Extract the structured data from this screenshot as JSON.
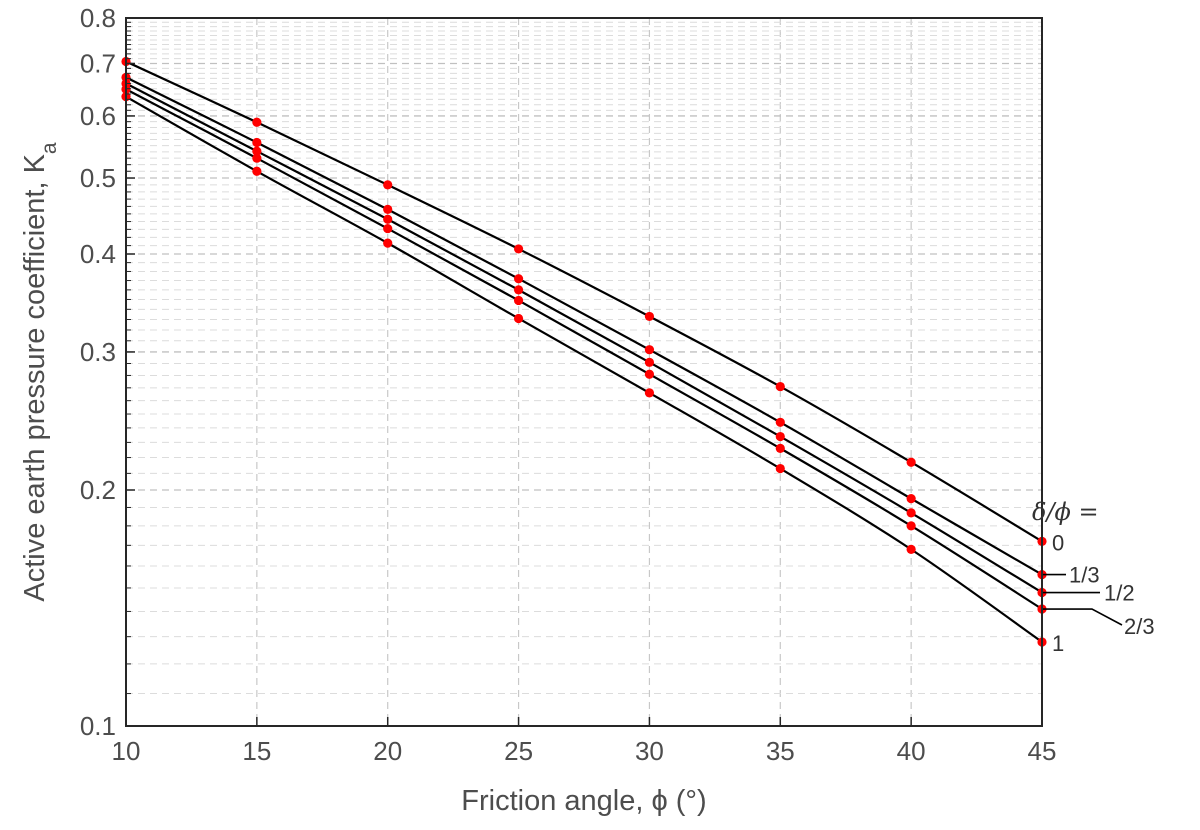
{
  "chart_data": {
    "type": "line",
    "xlabel": "Friction angle, ϕ (°)",
    "ylabel": "Active earth pressure coefficient, K",
    "ylabel_sub": "a",
    "xlim": [
      10,
      45
    ],
    "ylim": [
      0.1,
      0.8
    ],
    "y_scale": "log",
    "grid": true,
    "x_ticks": [
      10,
      15,
      20,
      25,
      30,
      35,
      40,
      45
    ],
    "y_ticks": [
      0.1,
      0.2,
      0.3,
      0.4,
      0.5,
      0.6,
      0.7,
      0.8
    ],
    "y_tick_labels": [
      "0.1",
      "0.2",
      "0.3",
      "0.4",
      "0.5",
      "0.6",
      "0.7",
      "0.8"
    ],
    "legend_title": "δ/ϕ =",
    "marker_color": "#ff0000",
    "line_color": "#000000",
    "x": [
      10,
      15,
      20,
      25,
      30,
      35,
      40,
      45
    ],
    "series": [
      {
        "label": "0",
        "values": [
          0.704,
          0.589,
          0.49,
          0.406,
          0.333,
          0.271,
          0.217,
          0.172
        ]
      },
      {
        "label": "1/3",
        "values": [
          0.672,
          0.555,
          0.456,
          0.372,
          0.302,
          0.244,
          0.195,
          0.156
        ]
      },
      {
        "label": "1/2",
        "values": [
          0.66,
          0.541,
          0.443,
          0.36,
          0.291,
          0.234,
          0.187,
          0.148
        ]
      },
      {
        "label": "2/3",
        "values": [
          0.649,
          0.53,
          0.431,
          0.349,
          0.281,
          0.226,
          0.18,
          0.141
        ]
      },
      {
        "label": "1",
        "values": [
          0.635,
          0.51,
          0.413,
          0.331,
          0.266,
          0.213,
          0.168,
          0.128
        ]
      }
    ]
  }
}
